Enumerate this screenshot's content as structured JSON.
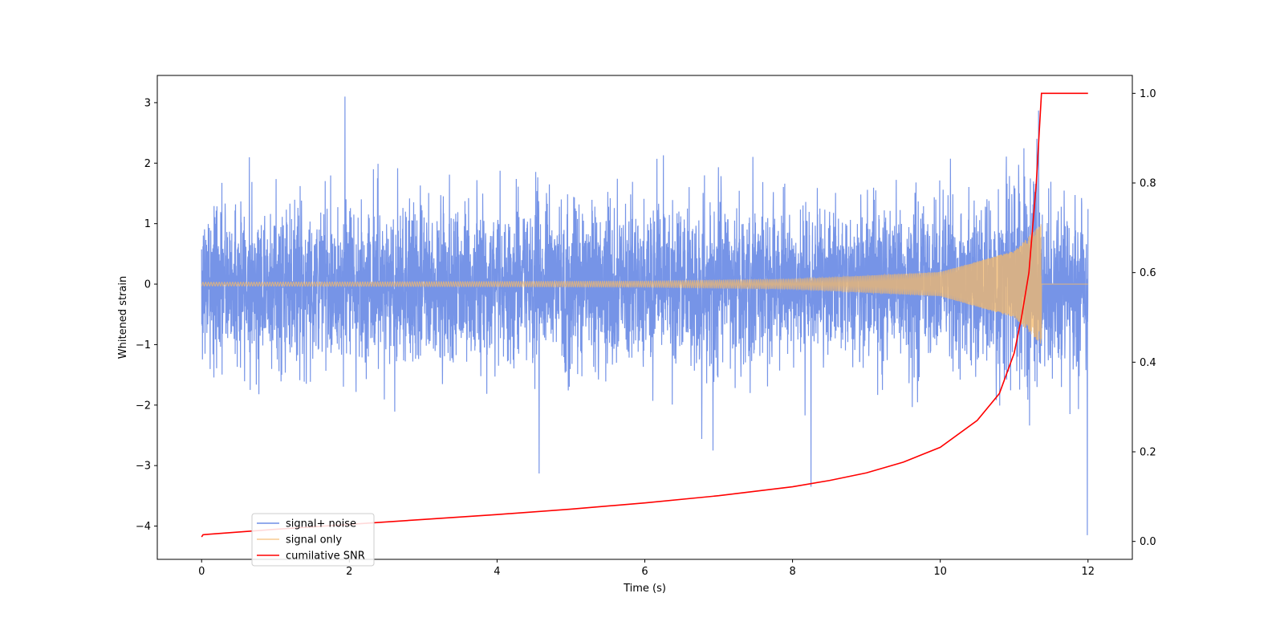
{
  "chart_data": {
    "type": "line",
    "title": "",
    "xlabel": "Time (s)",
    "ylabel": "Whitened strain",
    "y2label": "",
    "xlim": [
      -0.6,
      12.6
    ],
    "ylim": [
      -4.55,
      3.45
    ],
    "y2lim": [
      -0.04,
      1.04
    ],
    "x_ticks": [
      0,
      2,
      4,
      6,
      8,
      10,
      12
    ],
    "y_ticks": [
      3,
      2,
      1,
      0,
      -1,
      -2,
      -3,
      -4
    ],
    "y2_ticks": [
      1.0,
      0.8,
      0.6,
      0.4,
      0.2,
      0.0
    ],
    "x_tick_labels": [
      "0",
      "2",
      "4",
      "6",
      "8",
      "10",
      "12"
    ],
    "y_tick_labels": [
      "3",
      "2",
      "1",
      "0",
      "−1",
      "−2",
      "−3",
      "−4"
    ],
    "y2_tick_labels": [
      "1.0",
      "0.8",
      "0.6",
      "0.4",
      "0.2",
      "0.0"
    ],
    "grid": false,
    "legend_position": "lower-left",
    "series": [
      {
        "name": "signal+ noise",
        "axis": "left",
        "color": "#6f8ee6",
        "kind": "noise",
        "duration": 12.0,
        "std": 0.65,
        "typical_extremes": [
          3.1,
          -4.15
        ],
        "notable_peaks": [
          [
            1.94,
            3.1
          ],
          [
            4.57,
            -3.13
          ],
          [
            8.25,
            -3.35
          ],
          [
            11.33,
            2.87
          ],
          [
            11.99,
            -4.15
          ]
        ]
      },
      {
        "name": "signal only",
        "axis": "left",
        "color": "#f5b96a",
        "kind": "chirp",
        "x_start": 0.0,
        "x_merger": 11.37,
        "x_end": 12.0,
        "amplitude_start": 0.03,
        "amplitude_peak": 1.0,
        "amplitude_at": [
          [
            0,
            0.03
          ],
          [
            6,
            0.05
          ],
          [
            8,
            0.08
          ],
          [
            10,
            0.2
          ],
          [
            11,
            0.55
          ],
          [
            11.37,
            1.0
          ]
        ]
      },
      {
        "name": "cumilative SNR",
        "axis": "right",
        "color": "#ff0000",
        "x": [
          0,
          0.02,
          1,
          2,
          3,
          4,
          5,
          6,
          7,
          8,
          8.5,
          9,
          9.5,
          10,
          10.5,
          10.8,
          11.0,
          11.1,
          11.2,
          11.3,
          11.37,
          11.5,
          12
        ],
        "values": [
          0.01,
          0.015,
          0.027,
          0.038,
          0.049,
          0.06,
          0.072,
          0.086,
          0.102,
          0.122,
          0.136,
          0.153,
          0.177,
          0.21,
          0.27,
          0.33,
          0.42,
          0.5,
          0.6,
          0.8,
          1.0,
          1.0,
          1.0
        ]
      }
    ]
  }
}
